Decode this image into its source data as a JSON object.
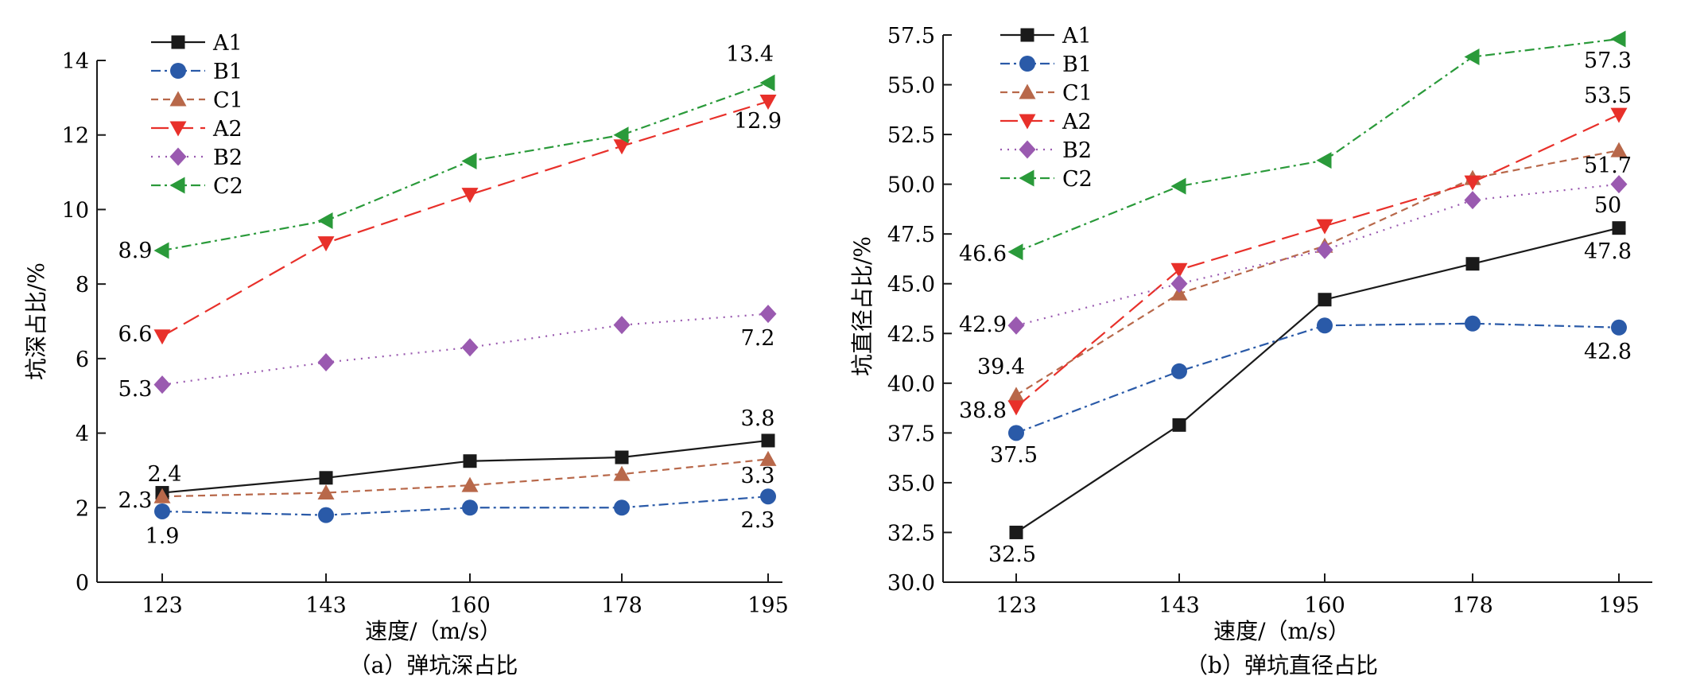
{
  "charts": [
    {
      "caption": "（a）弹坑深占比",
      "chart_data": {
        "type": "line",
        "categories": [
          "123",
          "143",
          "160",
          "178",
          "195"
        ],
        "xlabel": "速度/（m/s）",
        "ylabel": "坑深占比/%",
        "ylim": [
          0,
          14
        ],
        "yticks": [
          "0",
          "2",
          "4",
          "6",
          "8",
          "10",
          "12",
          "14"
        ],
        "grid": false,
        "legend_position": "top-left",
        "series": [
          {
            "name": "A1",
            "values": [
              2.4,
              2.8,
              3.25,
              3.35,
              3.8
            ],
            "color": "#1a1a1a",
            "marker": "square",
            "dash": "solid"
          },
          {
            "name": "B1",
            "values": [
              1.9,
              1.8,
              2.0,
              2.0,
              2.3
            ],
            "color": "#2a5aa8",
            "marker": "circle",
            "dash": "dashdot"
          },
          {
            "name": "C1",
            "values": [
              2.3,
              2.4,
              2.6,
              2.9,
              3.3
            ],
            "color": "#b8684a",
            "marker": "triangle-up",
            "dash": "dash"
          },
          {
            "name": "A2",
            "values": [
              6.6,
              9.1,
              10.4,
              11.7,
              12.9
            ],
            "color": "#e8302a",
            "marker": "triangle-down",
            "dash": "longdash"
          },
          {
            "name": "B2",
            "values": [
              5.3,
              5.9,
              6.3,
              6.9,
              7.2
            ],
            "color": "#9a5ab0",
            "marker": "diamond",
            "dash": "dot"
          },
          {
            "name": "C2",
            "values": [
              8.9,
              9.7,
              11.3,
              12.0,
              13.4
            ],
            "color": "#2a9a3a",
            "marker": "triangle-left",
            "dash": "dashdot"
          }
        ],
        "annotations": [
          {
            "text": "2.4",
            "x": "123",
            "y": 2.4
          },
          {
            "text": "2.3",
            "x": "123",
            "y": 2.3
          },
          {
            "text": "1.9",
            "x": "123",
            "y": 1.9
          },
          {
            "text": "5.3",
            "x": "123",
            "y": 5.3
          },
          {
            "text": "6.6",
            "x": "123",
            "y": 6.6
          },
          {
            "text": "8.9",
            "x": "123",
            "y": 8.9
          },
          {
            "text": "3.8",
            "x": "195",
            "y": 3.8
          },
          {
            "text": "3.3",
            "x": "195",
            "y": 3.3
          },
          {
            "text": "2.3",
            "x": "195",
            "y": 2.3
          },
          {
            "text": "7.2",
            "x": "195",
            "y": 7.2
          },
          {
            "text": "12.9",
            "x": "195",
            "y": 12.9
          },
          {
            "text": "13.4",
            "x": "195",
            "y": 13.4
          }
        ]
      }
    },
    {
      "caption": "（b）弹坑直径占比",
      "chart_data": {
        "type": "line",
        "categories": [
          "123",
          "143",
          "160",
          "178",
          "195"
        ],
        "xlabel": "速度/（m/s）",
        "ylabel": "坑直径占比/%",
        "ylim": [
          30,
          57.5
        ],
        "yticks": [
          "30.0",
          "32.5",
          "35.0",
          "37.5",
          "40.0",
          "42.5",
          "45.0",
          "47.5",
          "50.0",
          "52.5",
          "55.0",
          "57.5"
        ],
        "grid": false,
        "legend_position": "top-left",
        "series": [
          {
            "name": "A1",
            "values": [
              32.5,
              37.9,
              44.2,
              46.0,
              47.8
            ],
            "color": "#1a1a1a",
            "marker": "square",
            "dash": "solid"
          },
          {
            "name": "B1",
            "values": [
              37.5,
              40.6,
              42.9,
              43.0,
              42.8
            ],
            "color": "#2a5aa8",
            "marker": "circle",
            "dash": "dashdot"
          },
          {
            "name": "C1",
            "values": [
              39.4,
              44.5,
              46.9,
              50.3,
              51.7
            ],
            "color": "#b8684a",
            "marker": "triangle-up",
            "dash": "dash"
          },
          {
            "name": "A2",
            "values": [
              38.8,
              45.7,
              47.9,
              50.1,
              53.5
            ],
            "color": "#e8302a",
            "marker": "triangle-down",
            "dash": "longdash"
          },
          {
            "name": "B2",
            "values": [
              42.9,
              45.0,
              46.7,
              49.2,
              50.0
            ],
            "color": "#9a5ab0",
            "marker": "diamond",
            "dash": "dot"
          },
          {
            "name": "C2",
            "values": [
              46.6,
              49.9,
              51.2,
              56.4,
              57.3
            ],
            "color": "#2a9a3a",
            "marker": "triangle-left",
            "dash": "dashdot"
          }
        ],
        "annotations": [
          {
            "text": "46.6",
            "x": "123",
            "y": 46.6
          },
          {
            "text": "42.9",
            "x": "123",
            "y": 42.9
          },
          {
            "text": "39.4",
            "x": "123",
            "y": 39.4
          },
          {
            "text": "38.8",
            "x": "123",
            "y": 38.8
          },
          {
            "text": "37.5",
            "x": "123",
            "y": 37.5
          },
          {
            "text": "32.5",
            "x": "123",
            "y": 32.5
          },
          {
            "text": "57.3",
            "x": "195",
            "y": 57.3
          },
          {
            "text": "53.5",
            "x": "195",
            "y": 53.5
          },
          {
            "text": "51.7",
            "x": "195",
            "y": 51.7
          },
          {
            "text": "50",
            "x": "195",
            "y": 50.0
          },
          {
            "text": "47.8",
            "x": "195",
            "y": 47.8
          },
          {
            "text": "42.8",
            "x": "195",
            "y": 42.8
          }
        ]
      }
    }
  ]
}
